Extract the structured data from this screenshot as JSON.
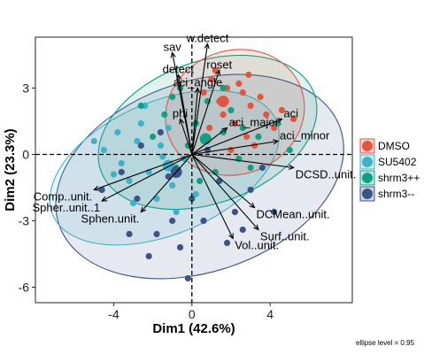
{
  "chart_data": {
    "type": "scatter",
    "subtype": "pca-biplot",
    "xlabel": "Dim1 (42.6%)",
    "ylabel": "Dim2 (23.3%)",
    "xlim": [
      -8,
      8.2
    ],
    "ylim": [
      -6.7,
      5.3
    ],
    "xticks": [
      -4,
      0,
      4
    ],
    "yticks": [
      -6,
      -3,
      0,
      3
    ],
    "grid": false,
    "legend_position": "right",
    "note": "ellipse level = 0.95",
    "series": [
      {
        "name": "DMSO",
        "color": "#e2553f",
        "ellipse": {
          "cx": 2.2,
          "cy": 1.9,
          "rx": 3.6,
          "ry": 2.8,
          "angle": -20
        },
        "centroid": [
          1.6,
          2.4
        ],
        "points": [
          [
            1.2,
            3.8
          ],
          [
            2.4,
            3.2
          ],
          [
            3.5,
            2.6
          ],
          [
            4.2,
            1.2
          ],
          [
            2.8,
            0.8
          ],
          [
            1.6,
            1.8
          ],
          [
            0.6,
            2.8
          ],
          [
            3.0,
            2.2
          ],
          [
            1.8,
            3.0
          ],
          [
            2.2,
            1.4
          ],
          [
            3.8,
            1.8
          ],
          [
            0.9,
            1.2
          ],
          [
            2.6,
            2.8
          ],
          [
            1.4,
            2.4
          ],
          [
            3.2,
            0.4
          ],
          [
            2.0,
            0.2
          ],
          [
            4.6,
            2.0
          ],
          [
            5.2,
            1.6
          ],
          [
            1.0,
            3.4
          ],
          [
            2.9,
            3.6
          ]
        ]
      },
      {
        "name": "SU5402",
        "color": "#3fb1ca",
        "ellipse": {
          "cx": -1.4,
          "cy": -0.6,
          "rx": 6.2,
          "ry": 3.0,
          "angle": -23
        },
        "centroid": [
          -1.2,
          -0.5
        ],
        "points": [
          [
            -4.5,
            0.2
          ],
          [
            -3.6,
            -0.4
          ],
          [
            -2.8,
            0.6
          ],
          [
            -2.2,
            -0.8
          ],
          [
            -1.6,
            0.4
          ],
          [
            -1.0,
            -1.4
          ],
          [
            -0.4,
            -0.2
          ],
          [
            -3.2,
            -1.2
          ],
          [
            -4.0,
            -0.9
          ],
          [
            -2.6,
            1.4
          ],
          [
            -1.8,
            -2.0
          ],
          [
            -0.8,
            -2.6
          ],
          [
            0.2,
            -1.8
          ],
          [
            -5.0,
            0.6
          ],
          [
            -3.0,
            -2.2
          ],
          [
            -1.2,
            1.2
          ],
          [
            -2.4,
            2.2
          ],
          [
            0.6,
            0.6
          ],
          [
            -3.8,
            1.0
          ],
          [
            -1.5,
            -0.1
          ]
        ]
      },
      {
        "name": "shrm3++",
        "color": "#119e84",
        "ellipse": {
          "cx": 0.8,
          "cy": 1.0,
          "rx": 5.8,
          "ry": 3.2,
          "angle": -20
        },
        "centroid": [
          0.7,
          0.7
        ],
        "points": [
          [
            -0.6,
            3.0
          ],
          [
            0.8,
            2.4
          ],
          [
            1.6,
            1.0
          ],
          [
            -1.4,
            1.8
          ],
          [
            2.4,
            -0.2
          ],
          [
            3.4,
            0.8
          ],
          [
            -0.2,
            0.4
          ],
          [
            1.2,
            -0.8
          ],
          [
            -2.0,
            0.8
          ],
          [
            4.4,
            1.4
          ],
          [
            0.2,
            1.4
          ],
          [
            2.0,
            2.0
          ],
          [
            -1.0,
            2.6
          ],
          [
            3.0,
            -0.6
          ],
          [
            1.6,
            3.0
          ],
          [
            -2.6,
            2.2
          ],
          [
            5.0,
            0.2
          ],
          [
            0.4,
            -1.2
          ],
          [
            -0.8,
            -0.6
          ],
          [
            2.6,
            1.2
          ]
        ]
      },
      {
        "name": "shrm3--",
        "color": "#3c5389",
        "ellipse": {
          "cx": 0.4,
          "cy": -1.0,
          "rx": 7.6,
          "ry": 4.3,
          "angle": -19
        },
        "centroid": [
          -0.8,
          -0.8
        ],
        "points": [
          [
            -1.8,
            -3.6
          ],
          [
            -0.6,
            -4.2
          ],
          [
            0.6,
            -3.0
          ],
          [
            2.2,
            -2.6
          ],
          [
            -2.8,
            -2.0
          ],
          [
            -1.2,
            -1.0
          ],
          [
            0.0,
            -2.0
          ],
          [
            3.0,
            -1.6
          ],
          [
            -3.6,
            -0.8
          ],
          [
            1.4,
            -1.2
          ],
          [
            -2.2,
            -4.6
          ],
          [
            -0.2,
            -5.6
          ],
          [
            1.8,
            -4.0
          ],
          [
            4.2,
            -2.6
          ],
          [
            -4.6,
            -1.6
          ],
          [
            -1.0,
            -3.0
          ],
          [
            2.6,
            -3.4
          ],
          [
            -2.6,
            0.4
          ],
          [
            0.8,
            0.2
          ],
          [
            -3.2,
            -3.6
          ],
          [
            3.6,
            -0.6
          ],
          [
            -1.6,
            1.0
          ]
        ]
      }
    ],
    "variables": [
      {
        "name": "w.detect",
        "x": 0.8,
        "y": 5.0
      },
      {
        "name": "sav",
        "x": -1.0,
        "y": 4.6
      },
      {
        "name": "roset",
        "x": 1.4,
        "y": 3.8
      },
      {
        "name": "detect",
        "x": -0.7,
        "y": 3.6
      },
      {
        "name": "aci_angle",
        "x": 0.3,
        "y": 3.0
      },
      {
        "name": "phi",
        "x": -0.6,
        "y": 1.6
      },
      {
        "name": "aci",
        "x": 4.6,
        "y": 1.6
      },
      {
        "name": "aci_major",
        "x": 1.8,
        "y": 1.2
      },
      {
        "name": "aci_minor",
        "x": 4.4,
        "y": 0.6
      },
      {
        "name": "DCSD..unit.",
        "x": 5.2,
        "y": -0.6
      },
      {
        "name": "Comp..unit.",
        "x": -5.0,
        "y": -1.6
      },
      {
        "name": "Spher..unit..1",
        "x": -4.6,
        "y": -2.1
      },
      {
        "name": "Sphen.unit.",
        "x": -2.6,
        "y": -2.6
      },
      {
        "name": "DCMean..unit.",
        "x": 3.2,
        "y": -2.4
      },
      {
        "name": "Surf..unit.",
        "x": 3.4,
        "y": -3.4
      },
      {
        "name": "Vol..unit.",
        "x": 2.1,
        "y": -3.8
      }
    ]
  }
}
